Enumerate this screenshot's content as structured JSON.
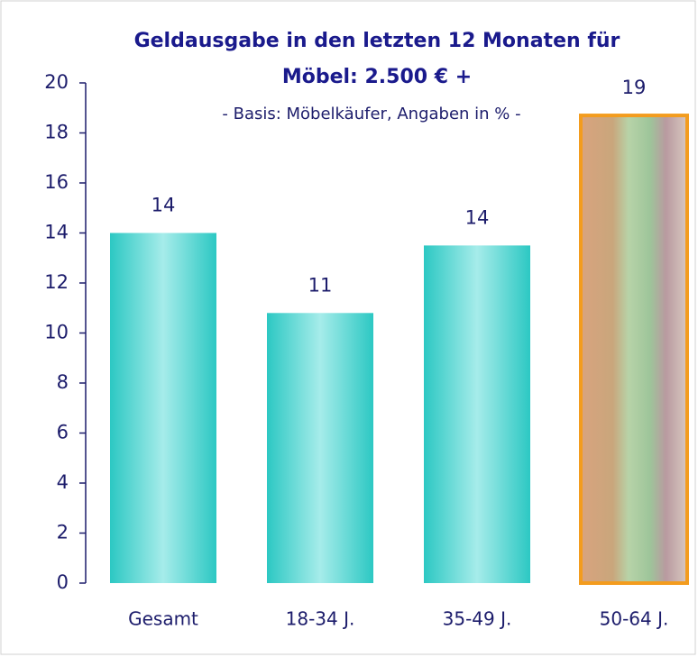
{
  "chart_data": {
    "type": "bar",
    "title": [
      "Geldausgabe in den letzten 12 Monaten für",
      "Möbel: 2.500 € +"
    ],
    "subtitle": "- Basis: Möbelkäufer, Angaben in % -",
    "categories": [
      "Gesamt",
      "18-34 J.",
      "35-49 J.",
      "50-64 J."
    ],
    "values": [
      14,
      10.8,
      13.5,
      18.7
    ],
    "value_labels": [
      "14",
      "11",
      "14",
      "19"
    ],
    "colors": [
      "#3ccfca",
      "#3ccfca",
      "#3ccfca",
      "#f39c1e"
    ],
    "ylim": [
      0,
      20
    ],
    "yticks": [
      0,
      2,
      4,
      6,
      8,
      10,
      12,
      14,
      16,
      18,
      20
    ]
  }
}
